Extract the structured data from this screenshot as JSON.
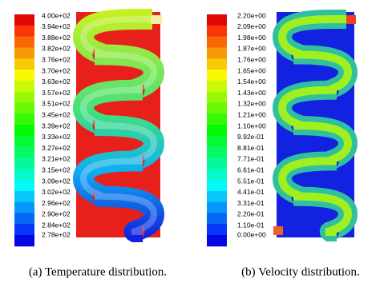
{
  "panels": [
    {
      "colorbar_labels": [
        "4.00e+02",
        "3.94e+02",
        "3.88e+02",
        "3.82e+02",
        "3.76e+02",
        "3.70e+02",
        "3.63e+02",
        "3.57e+02",
        "3.51e+02",
        "3.45e+02",
        "3.39e+02",
        "3.33e+02",
        "3.27e+02",
        "3.21e+02",
        "3.15e+02",
        "3.09e+02",
        "3.02e+02",
        "2.96e+02",
        "2.90e+02",
        "2.84e+02",
        "2.78e+02"
      ],
      "caption": "(a) Temperature distribution."
    },
    {
      "colorbar_labels": [
        "2.20e+00",
        "2.09e+00",
        "1.98e+00",
        "1.87e+00",
        "1.76e+00",
        "1.65e+00",
        "1.54e+00",
        "1.43e+00",
        "1.32e+00",
        "1.21e+00",
        "1.10e+00",
        "9.92e-01",
        "8.81e-01",
        "7.71e-01",
        "6.61e-01",
        "5.51e-01",
        "4.41e-01",
        "3.31e-01",
        "2.20e-01",
        "1.10e-01",
        "0.00e+00"
      ],
      "caption": "(b) Velocity distribution."
    }
  ]
}
